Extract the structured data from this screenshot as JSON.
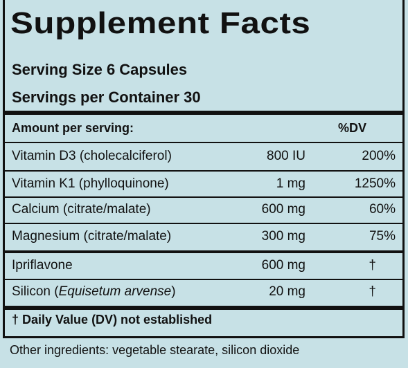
{
  "title": "Supplement Facts",
  "serving_size": "Serving Size 6 Capsules",
  "servings_per_container": "Servings per Container 30",
  "header": {
    "amount_label": "Amount per serving:",
    "dv_label": "%DV"
  },
  "rows": [
    {
      "name": "Vitamin D3 (cholecalciferol)",
      "amount": "800 IU",
      "dv": "200%"
    },
    {
      "name": "Vitamin K1 (phylloquinone)",
      "amount": "1 mg",
      "dv": "1250%"
    },
    {
      "name": "Calcium (citrate/malate)",
      "amount": "600 mg",
      "dv": "60%"
    },
    {
      "name": "Magnesium (citrate/malate)",
      "amount": "300 mg",
      "dv": "75%"
    },
    {
      "name": "Ipriflavone",
      "amount": "600 mg",
      "dv": "†"
    },
    {
      "name_prefix": "Silicon (",
      "name_italic": "Equisetum arvense",
      "name_suffix": ")",
      "amount": "20 mg",
      "dv": "†"
    }
  ],
  "footnote": "† Daily Value (DV) not established",
  "other_ingredients": "Other ingredients: vegetable stearate, silicon dioxide",
  "colors": {
    "background": "#c7e1e6",
    "text": "#111111"
  }
}
